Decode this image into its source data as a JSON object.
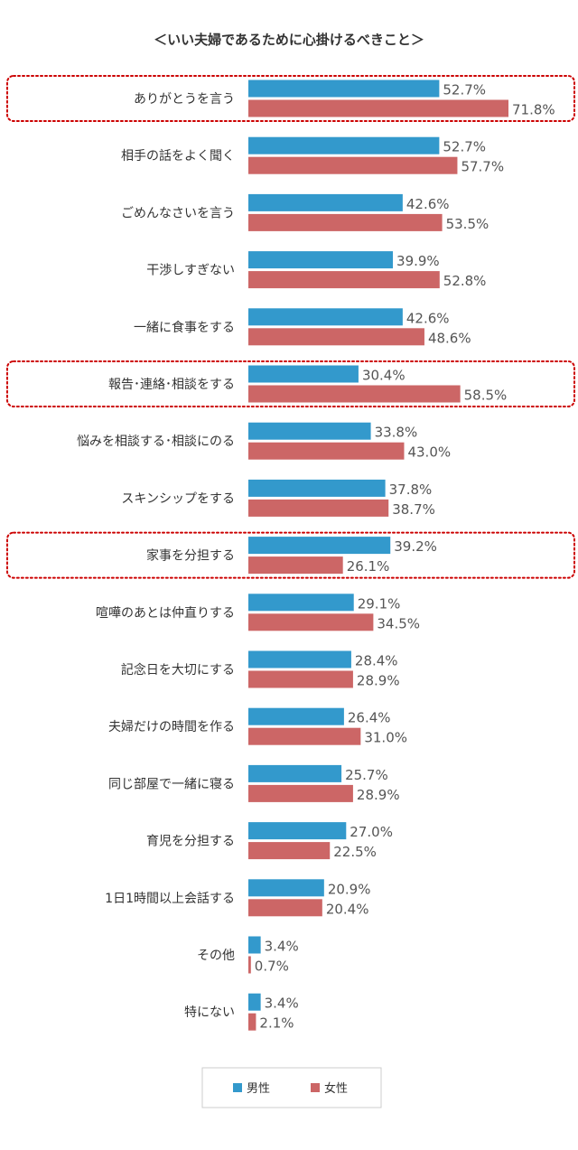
{
  "chart_data": {
    "type": "bar",
    "orientation": "horizontal",
    "title": "＜いい夫婦であるために心掛けるべきこと＞",
    "categories": [
      "ありがとうを言う",
      "相手の話をよく聞く",
      "ごめんなさいを言う",
      "干渉しすぎない",
      "一緒に食事をする",
      "報告･連絡･相談をする",
      "悩みを相談する･相談にのる",
      "スキンシップをする",
      "家事を分担する",
      "喧嘩のあとは仲直りする",
      "記念日を大切にする",
      "夫婦だけの時間を作る",
      "同じ部屋で一緒に寝る",
      "育児を分担する",
      "1日1時間以上会話する",
      "その他",
      "特にない"
    ],
    "series": [
      {
        "name": "男性",
        "color": "#3399cc",
        "values": [
          52.7,
          52.7,
          42.6,
          39.9,
          42.6,
          30.4,
          33.8,
          37.8,
          39.2,
          29.1,
          28.4,
          26.4,
          25.7,
          27.0,
          20.9,
          3.4,
          3.4
        ],
        "labels": [
          "52.7%",
          "52.7%",
          "42.6%",
          "39.9%",
          "42.6%",
          "30.4%",
          "33.8%",
          "37.8%",
          "39.2%",
          "29.1%",
          "28.4%",
          "26.4%",
          "25.7%",
          "27.0%",
          "20.9%",
          "3.4%",
          "3.4%"
        ]
      },
      {
        "name": "女性",
        "color": "#cc6666",
        "values": [
          71.8,
          57.7,
          53.5,
          52.8,
          48.6,
          58.5,
          43.0,
          38.7,
          26.1,
          34.5,
          28.9,
          31.0,
          28.9,
          22.5,
          20.4,
          0.7,
          2.1
        ],
        "labels": [
          "71.8%",
          "57.7%",
          "53.5%",
          "52.8%",
          "48.6%",
          "58.5%",
          "43.0%",
          "38.7%",
          "26.1%",
          "34.5%",
          "28.9%",
          "31.0%",
          "28.9%",
          "22.5%",
          "20.4%",
          "0.7%",
          "2.1%"
        ]
      }
    ],
    "highlighted_categories": [
      "ありがとうを言う",
      "報告･連絡･相談をする",
      "家事を分担する"
    ],
    "highlight_color": "#cc0000",
    "legend_position": "bottom-center",
    "grid": false,
    "xlim": [
      0,
      80
    ]
  }
}
